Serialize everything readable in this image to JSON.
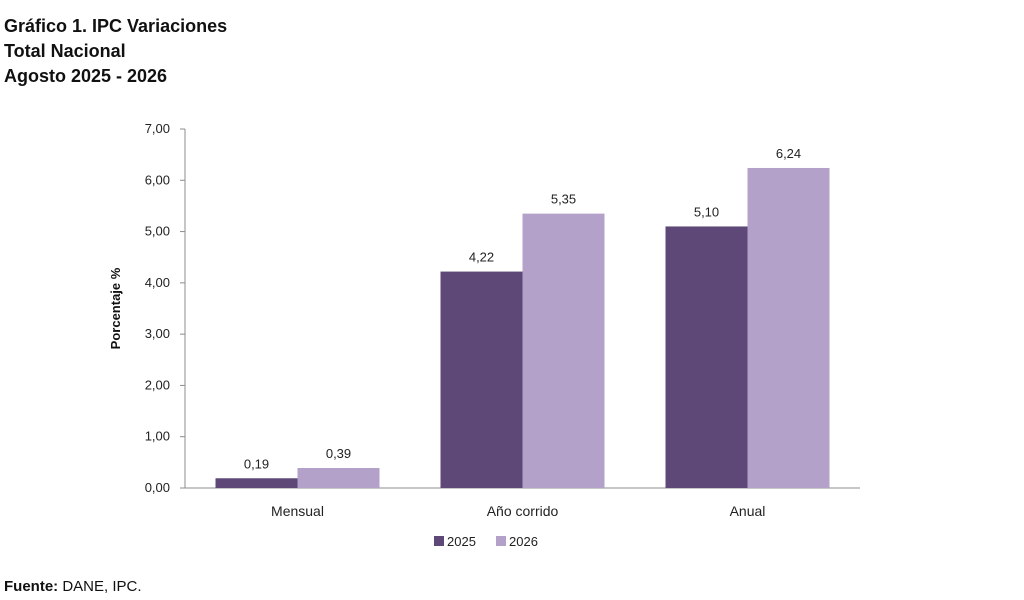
{
  "title_lines": [
    "Gráfico 1. IPC Variaciones",
    "Total Nacional",
    "Agosto 2025 - 2026"
  ],
  "source": {
    "label": "Fuente:",
    "text": " DANE, IPC."
  },
  "colors": {
    "series_2025": "#5e4877",
    "series_2026": "#b3a1c9",
    "axis": "#8c8c8c"
  },
  "chart_data": {
    "type": "bar",
    "title": "Gráfico 1. IPC Variaciones",
    "ylabel": "Porcentaje %",
    "xlabel": "",
    "categories": [
      "Mensual",
      "Año corrido",
      "Anual"
    ],
    "series": [
      {
        "name": "2025",
        "values": [
          0.19,
          4.22,
          5.1
        ],
        "labels": [
          "0,19",
          "4,22",
          "5,10"
        ]
      },
      {
        "name": "2026",
        "values": [
          0.39,
          5.35,
          6.24
        ],
        "labels": [
          "0,39",
          "5,35",
          "6,24"
        ]
      }
    ],
    "ylim": [
      0,
      7
    ],
    "yticks": [
      0,
      1,
      2,
      3,
      4,
      5,
      6,
      7
    ],
    "ytick_labels": [
      "0,00",
      "1,00",
      "2,00",
      "3,00",
      "4,00",
      "5,00",
      "6,00",
      "7,00"
    ],
    "grid": false,
    "legend": "bottom-center"
  }
}
